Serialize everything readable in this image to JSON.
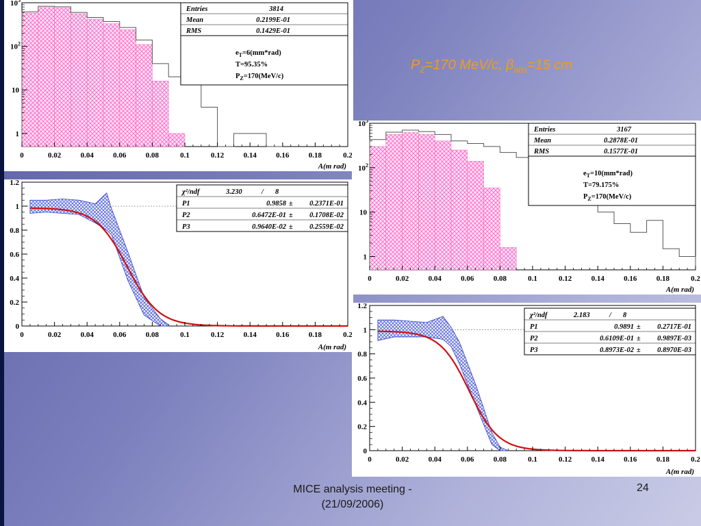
{
  "slide": {
    "title_parts": {
      "p": "P",
      "z": "Z",
      "eq": "=170 MeV/c, ",
      "beta": "β",
      "abs": "abs",
      "val": "=15 cm"
    },
    "footer_line1": "MICE analysis meeting -",
    "footer_line2": "(21/09/2006)",
    "page_number": "24",
    "colors": {
      "title": "#f29a1c",
      "hist_fill": "#ff66cc",
      "band": "#3344cc",
      "fit": "#d01010"
    }
  },
  "chart_data": [
    {
      "type": "histogram",
      "id": "hist1",
      "xlabel": "A(m rad)",
      "xlim": [
        0,
        0.2
      ],
      "ylim_log": [
        0.5,
        1000
      ],
      "log_y": true,
      "yticks": [
        {
          "v": 1,
          "label": "1"
        },
        {
          "v": 10,
          "label": "10"
        },
        {
          "v": 100,
          "label": "10",
          "sup": "2"
        },
        {
          "v": 1000,
          "label": "10",
          "sup": "3"
        }
      ],
      "xticks": [
        "0",
        "0.02",
        "0.04",
        "0.06",
        "0.08",
        "0.1",
        "0.12",
        "0.14",
        "0.16",
        "0.18",
        "0.2"
      ],
      "bin_width": 0.01,
      "stats": {
        "entries_label": "Entries",
        "entries": "3814",
        "mean_label": "Mean",
        "mean": "0.2199E-01",
        "rms_label": "RMS",
        "rms": "0.1429E-01"
      },
      "annotations": [
        {
          "base": "e",
          "sub": "T",
          "rest": "=6(mm*rad)"
        },
        {
          "base": "T=95.35%"
        },
        {
          "base": "P",
          "sub": "Z",
          "rest": "=170(MeV/c)"
        }
      ],
      "filled_counts": [
        580,
        780,
        760,
        560,
        420,
        330,
        240,
        110,
        16,
        1
      ],
      "outline_counts": [
        620,
        830,
        810,
        600,
        460,
        370,
        270,
        140,
        40,
        20,
        14,
        4,
        0.4,
        1,
        1,
        0.4
      ]
    },
    {
      "type": "line",
      "id": "fit1",
      "xlabel": "A(m rad)",
      "xlim": [
        0,
        0.2
      ],
      "ylim": [
        0,
        1.2
      ],
      "yticks": [
        "0",
        "0.2",
        "0.4",
        "0.6",
        "0.8",
        "1",
        "1.2"
      ],
      "xticks": [
        "0",
        "0.02",
        "0.04",
        "0.06",
        "0.08",
        "0.1",
        "0.12",
        "0.14",
        "0.16",
        "0.18",
        "0.2"
      ],
      "stats": {
        "chi_label": "χ²/ndf",
        "chi": "3.230",
        "slash": "/",
        "ndf": "8",
        "pm": "±",
        "params": [
          {
            "name": "P1",
            "value": "0.9858",
            "error": "0.2371E-01"
          },
          {
            "name": "P2",
            "value": "0.6472E-01",
            "error": "0.1708E-02"
          },
          {
            "name": "P3",
            "value": "0.9640E-02",
            "error": "0.2559E-02"
          }
        ]
      },
      "fit": {
        "p1": 0.9858,
        "p2": 0.06472,
        "p3": 0.00964
      },
      "band_x": [
        0.005,
        0.015,
        0.025,
        0.035,
        0.045,
        0.052,
        0.055,
        0.065,
        0.075,
        0.085,
        0.09
      ],
      "band_upper": [
        1.05,
        1.05,
        1.06,
        1.05,
        1.02,
        1.11,
        0.98,
        0.62,
        0.24,
        0.06,
        0.01
      ],
      "band_lower": [
        0.94,
        0.95,
        0.94,
        0.93,
        0.86,
        0.8,
        0.76,
        0.38,
        0.09,
        0.0,
        0.0
      ]
    },
    {
      "type": "histogram",
      "id": "hist2",
      "xlabel": "A(m rad)",
      "xlim": [
        0,
        0.2
      ],
      "ylim_log": [
        0.5,
        1000
      ],
      "log_y": true,
      "yticks": [
        {
          "v": 1,
          "label": "1"
        },
        {
          "v": 10,
          "label": "10"
        },
        {
          "v": 100,
          "label": "10",
          "sup": "2"
        },
        {
          "v": 1000,
          "label": "10",
          "sup": "3"
        }
      ],
      "xticks": [
        "0",
        "0.02",
        "0.04",
        "0.06",
        "0.08",
        "0.1",
        "0.12",
        "0.14",
        "0.16",
        "0.18",
        "0.2"
      ],
      "bin_width": 0.01,
      "stats": {
        "entries_label": "Entries",
        "entries": "3167",
        "mean_label": "Mean",
        "mean": "0.2878E-01",
        "rms_label": "RMS",
        "rms": "0.1577E-01"
      },
      "annotations": [
        {
          "base": "e",
          "sub": "T",
          "rest": "=10(mm*rad)"
        },
        {
          "base": "T=79.175%"
        },
        {
          "base": "P",
          "sub": "Z",
          "rest": "=170(MeV/c)"
        }
      ],
      "filled_counts": [
        300,
        560,
        620,
        560,
        400,
        250,
        140,
        35,
        1.6
      ],
      "outline_counts": [
        430,
        630,
        700,
        650,
        560,
        400,
        350,
        300,
        220,
        170,
        120,
        55,
        34,
        17,
        10,
        5.5,
        3.5,
        6.5,
        1.5,
        1
      ]
    },
    {
      "type": "line",
      "id": "fit2",
      "xlabel": "A(m rad)",
      "xlim": [
        0,
        0.2
      ],
      "ylim": [
        0,
        1.2
      ],
      "yticks": [
        "0",
        "0.2",
        "0.4",
        "0.6",
        "0.8",
        "1",
        "1.2"
      ],
      "xticks": [
        "0",
        "0.02",
        "0.04",
        "0.06",
        "0.08",
        "0.1",
        "0.12",
        "0.14",
        "0.16",
        "0.18",
        "0.2"
      ],
      "stats": {
        "chi_label": "χ²/ndf",
        "chi": "2.183",
        "slash": "/",
        "ndf": "8",
        "pm": "±",
        "params": [
          {
            "name": "P1",
            "value": "0.9891",
            "error": "0.2717E-01"
          },
          {
            "name": "P2",
            "value": "0.6109E-01",
            "error": "0.9897E-03"
          },
          {
            "name": "P3",
            "value": "0.8973E-02",
            "error": "0.8970E-03"
          }
        ]
      },
      "fit": {
        "p1": 0.9891,
        "p2": 0.06109,
        "p3": 0.008973
      },
      "band_x": [
        0.005,
        0.015,
        0.025,
        0.035,
        0.045,
        0.05,
        0.055,
        0.065,
        0.075,
        0.08,
        0.085
      ],
      "band_upper": [
        1.08,
        1.08,
        1.07,
        1.06,
        1.11,
        1.02,
        0.9,
        0.55,
        0.15,
        0.03,
        0.0
      ],
      "band_lower": [
        0.91,
        0.94,
        0.94,
        0.94,
        0.92,
        0.86,
        0.72,
        0.38,
        0.05,
        0.0,
        0.0
      ]
    }
  ]
}
